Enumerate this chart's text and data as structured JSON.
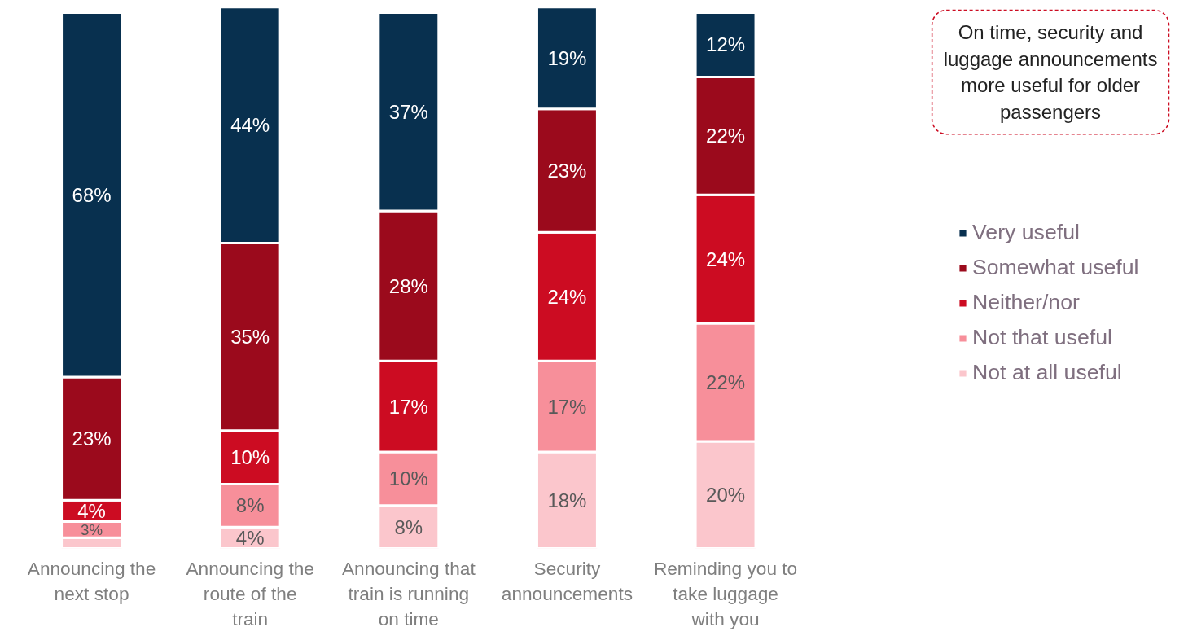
{
  "chart_data": {
    "type": "bar",
    "stacked": true,
    "legend": "right",
    "categories": [
      "Announcing the next stop",
      "Announcing the route of the train",
      "Announcing that train is running on time",
      "Security announcements",
      "Reminding you to take luggage with you"
    ],
    "series": [
      {
        "name": "Not at all useful",
        "color": "#fbc6cc",
        "values": [
          2,
          4,
          8,
          18,
          20
        ],
        "value_labels": [
          null,
          "4%",
          "8%",
          "18%",
          "20%"
        ]
      },
      {
        "name": "Not that useful",
        "color": "#f78f9a",
        "values": [
          3,
          8,
          10,
          17,
          22
        ],
        "value_labels": [
          "3%",
          "8%",
          "10%",
          "17%",
          "22%"
        ]
      },
      {
        "name": "Neither/nor",
        "color": "#cc0c22",
        "values": [
          4,
          10,
          17,
          24,
          24
        ],
        "value_labels": [
          "4%",
          "10%",
          "17%",
          "24%",
          "24%"
        ]
      },
      {
        "name": "Somewhat useful",
        "color": "#9b0a1c",
        "values": [
          23,
          35,
          28,
          23,
          22
        ],
        "value_labels": [
          "23%",
          "35%",
          "28%",
          "23%",
          "22%"
        ]
      },
      {
        "name": "Very useful",
        "color": "#08304f",
        "values": [
          68,
          44,
          37,
          19,
          12
        ],
        "value_labels": [
          "68%",
          "44%",
          "37%",
          "19%",
          "12%"
        ]
      }
    ],
    "annotations": [
      "On time, security and luggage announcements more useful for older passengers"
    ]
  }
}
